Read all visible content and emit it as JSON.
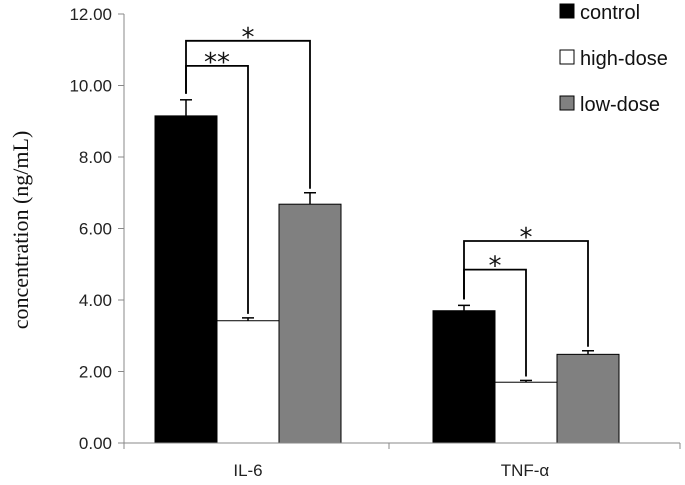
{
  "chart_data": {
    "type": "bar",
    "title": "",
    "xlabel": "",
    "ylabel": "concentration (ng/mL)",
    "ylim": [
      0,
      12
    ],
    "yticks": [
      0,
      2,
      4,
      6,
      8,
      10,
      12
    ],
    "ytick_labels": [
      "0.00",
      "2.00",
      "4.00",
      "6.00",
      "8.00",
      "10.00",
      "12.00"
    ],
    "categories": [
      "IL-6",
      "TNF-α"
    ],
    "series": [
      {
        "name": "control",
        "color": "#000000",
        "values": [
          9.15,
          3.7
        ],
        "errors": [
          0.45,
          0.15
        ]
      },
      {
        "name": "high-dose",
        "color": "#ffffff",
        "values": [
          3.42,
          1.7
        ],
        "errors": [
          0.08,
          0.05
        ]
      },
      {
        "name": "low-dose",
        "color": "#808080",
        "values": [
          6.68,
          2.48
        ],
        "errors": [
          0.32,
          0.1
        ]
      }
    ],
    "legend_position": "top-right",
    "significance": [
      {
        "category": 0,
        "from_series": 0,
        "to_series": 1,
        "label": "**",
        "bracket_y": 10.55
      },
      {
        "category": 0,
        "from_series": 0,
        "to_series": 2,
        "label": "*",
        "bracket_y": 11.25
      },
      {
        "category": 1,
        "from_series": 0,
        "to_series": 1,
        "label": "*",
        "bracket_y": 4.85
      },
      {
        "category": 1,
        "from_series": 0,
        "to_series": 2,
        "label": "*",
        "bracket_y": 5.65
      }
    ]
  }
}
